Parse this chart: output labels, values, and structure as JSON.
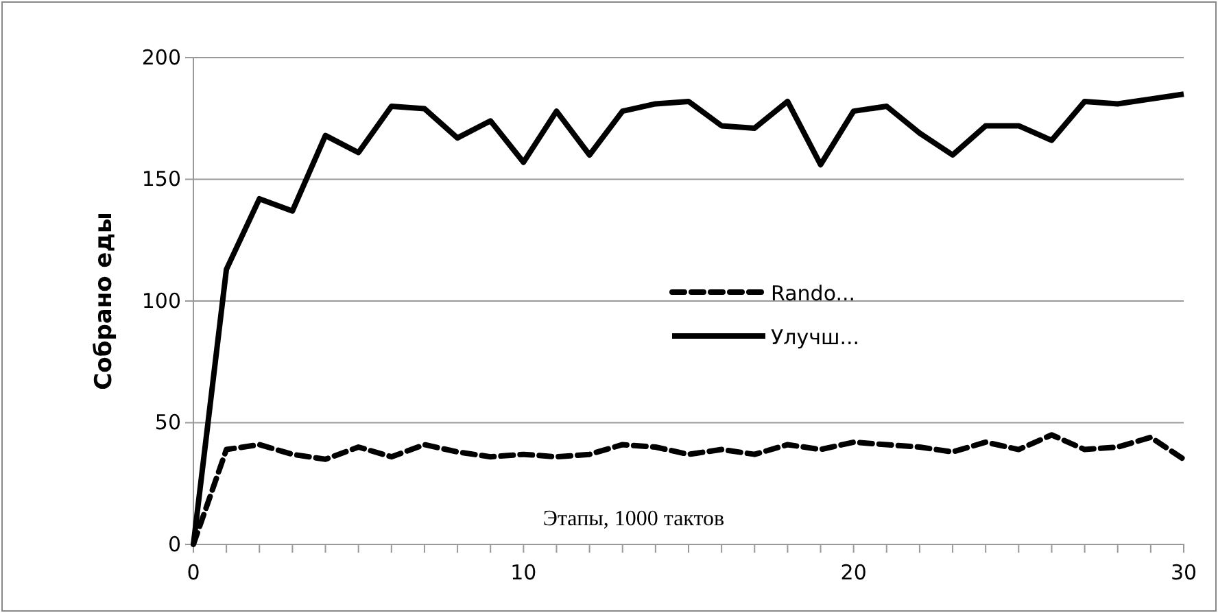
{
  "chart_data": {
    "type": "line",
    "xlabel": "Этапы, 1000 тактов",
    "ylabel": "Собрано еды",
    "x": [
      0,
      1,
      2,
      3,
      4,
      5,
      6,
      7,
      8,
      9,
      10,
      11,
      12,
      13,
      14,
      15,
      16,
      17,
      18,
      19,
      20,
      21,
      22,
      23,
      24,
      25,
      26,
      27,
      28,
      29,
      30
    ],
    "series": [
      {
        "name": "Rando...",
        "color": "#000000",
        "line_style": "dashed",
        "values": [
          0,
          39,
          41,
          37,
          35,
          40,
          36,
          41,
          38,
          36,
          37,
          36,
          37,
          41,
          40,
          37,
          39,
          37,
          41,
          39,
          42,
          41,
          40,
          38,
          42,
          39,
          45,
          39,
          40,
          44,
          35
        ]
      },
      {
        "name": "Улучш...",
        "color": "#000000",
        "line_style": "solid",
        "values": [
          0,
          113,
          142,
          137,
          168,
          161,
          180,
          179,
          167,
          174,
          157,
          178,
          160,
          178,
          181,
          182,
          172,
          171,
          182,
          156,
          178,
          180,
          169,
          160,
          172,
          172,
          166,
          182,
          181,
          183,
          185
        ]
      }
    ],
    "xlim": [
      0,
      30
    ],
    "xticks": [
      0,
      {
        "value": 1,
        "label": null
      },
      {
        "value": 2,
        "label": null
      },
      {
        "value": 3,
        "label": null
      },
      {
        "value": 4,
        "label": null
      },
      {
        "value": 5,
        "label": null
      },
      {
        "value": 6,
        "label": null
      },
      {
        "value": 7,
        "label": null
      },
      {
        "value": 8,
        "label": null
      },
      {
        "value": 9,
        "label": null
      },
      10,
      {
        "value": 11,
        "label": null
      },
      {
        "value": 12,
        "label": null
      },
      {
        "value": 13,
        "label": null
      },
      {
        "value": 14,
        "label": null
      },
      {
        "value": 15,
        "label": null
      },
      {
        "value": 16,
        "label": null
      },
      {
        "value": 17,
        "label": null
      },
      {
        "value": 18,
        "label": null
      },
      {
        "value": 19,
        "label": null
      },
      20,
      {
        "value": 21,
        "label": null
      },
      {
        "value": 22,
        "label": null
      },
      {
        "value": 23,
        "label": null
      },
      {
        "value": 24,
        "label": null
      },
      {
        "value": 25,
        "label": null
      },
      {
        "value": 26,
        "label": null
      },
      {
        "value": 27,
        "label": null
      },
      {
        "value": 28,
        "label": null
      },
      {
        "value": 29,
        "label": null
      },
      30
    ],
    "ylim": [
      0,
      200
    ],
    "yticks": [
      0,
      50,
      100,
      150,
      200
    ],
    "grid": "y",
    "legend": "center",
    "marker": "none"
  }
}
